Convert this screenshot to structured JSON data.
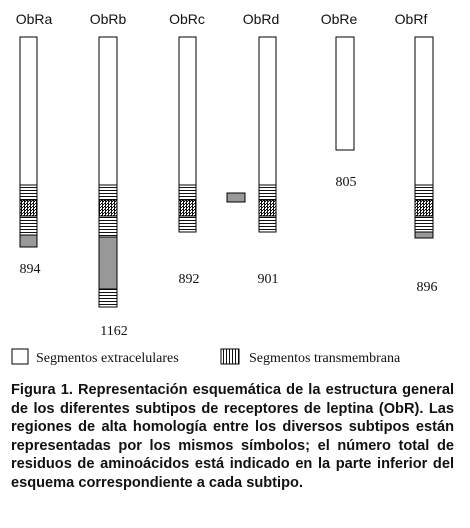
{
  "receptors": [
    {
      "name": "ObRa",
      "residues": "894"
    },
    {
      "name": "ObRb",
      "residues": "1162"
    },
    {
      "name": "ObRc",
      "residues": "892"
    },
    {
      "name": "ObRd",
      "residues": "901"
    },
    {
      "name": "ObRe",
      "residues": "805"
    },
    {
      "name": "ObRf",
      "residues": "896"
    }
  ],
  "legend": {
    "extracellular": "Segmentos extracelulares",
    "transmembrane": "Segmentos transmembrana"
  },
  "caption": "Figura 1. Representación esquemática de la estructura general de los diferentes subtipos de receptores de leptina (ObR). Las regiones de alta homología entre los diversos subtipos están representadas por los mismos símbolos; el número total de residuos de aminoácidos está indicado en la parte inferior del esquema correspondiente a cada subtipo."
}
